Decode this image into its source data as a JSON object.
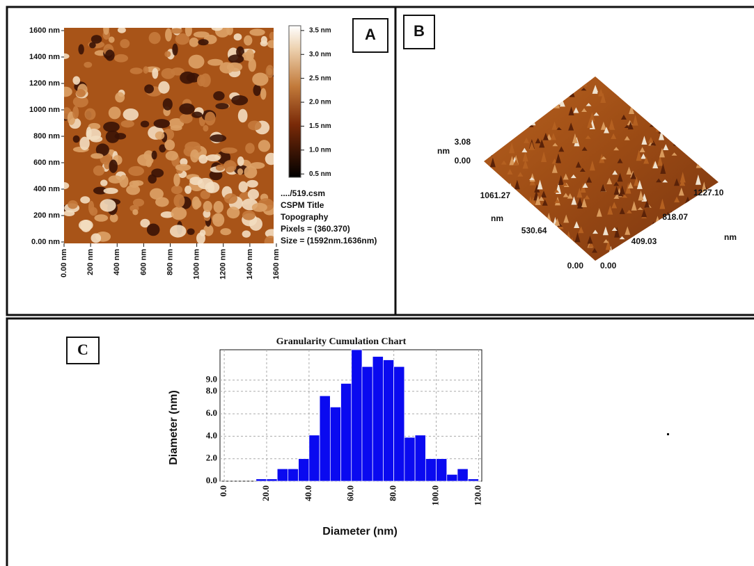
{
  "chart_data": [
    {
      "type": "image",
      "label": "A",
      "xlim": [
        0,
        1600
      ],
      "ylim": [
        0,
        1600
      ],
      "xticks": [
        {
          "value": 0,
          "label": "0.00 nm"
        },
        {
          "value": 200,
          "label": "200 nm"
        },
        {
          "value": 400,
          "label": "400 nm"
        },
        {
          "value": 600,
          "label": "600 nm"
        },
        {
          "value": 800,
          "label": "800 nm"
        },
        {
          "value": 1000,
          "label": "1000 nm"
        },
        {
          "value": 1200,
          "label": "1200 nm"
        },
        {
          "value": 1400,
          "label": "1400 nm"
        },
        {
          "value": 1600,
          "label": "1600 nm"
        }
      ],
      "yticks": [
        {
          "value": 0,
          "label": "0.00 nm"
        },
        {
          "value": 200,
          "label": "200 nm"
        },
        {
          "value": 400,
          "label": "400 nm"
        },
        {
          "value": 600,
          "label": "600 nm"
        },
        {
          "value": 800,
          "label": "800 nm"
        },
        {
          "value": 1000,
          "label": "1000 nm"
        },
        {
          "value": 1200,
          "label": "1200 nm"
        },
        {
          "value": 1400,
          "label": "1400 nm"
        },
        {
          "value": 1600,
          "label": "1600 nm"
        }
      ],
      "clim": [
        0.43,
        3.6
      ],
      "cticks": [
        {
          "value": 0.5,
          "label": "0.5 nm"
        },
        {
          "value": 1.0,
          "label": "1.0 nm"
        },
        {
          "value": 1.5,
          "label": "1.5 nm"
        },
        {
          "value": 2.0,
          "label": "2.0 nm"
        },
        {
          "value": 2.5,
          "label": "2.5 nm"
        },
        {
          "value": 3.0,
          "label": "3.0 nm"
        },
        {
          "value": 3.5,
          "label": "3.5 nm"
        }
      ],
      "info": [
        "..../519.csm",
        "CSPM Title",
        "Topography",
        "Pixels = (360.370)",
        "Size = (1592nm.1636nm)"
      ]
    },
    {
      "type": "surface3d",
      "label": "B",
      "zticks": [
        {
          "value": 0,
          "label": "0.00"
        },
        3.08
      ],
      "z_unit": "nm",
      "yticks": [
        {
          "value": 0,
          "label": "0.00"
        },
        530.64,
        1061.27
      ],
      "y_unit": "nm",
      "xticks": [
        {
          "value": 0,
          "label": "0.00"
        },
        409.03,
        818.07,
        {
          "value": 1227.1,
          "label": "1227.10"
        }
      ],
      "x_unit": "nm"
    },
    {
      "type": "histogram",
      "label": "C",
      "title": "Granularity Cumulation Chart",
      "xlabel": "Diameter (nm)",
      "ylabel": "Diameter (nm)",
      "bins": [
        15,
        20,
        25,
        30,
        35,
        40,
        45,
        50,
        55,
        60,
        65,
        70,
        75,
        80,
        85,
        90,
        95,
        100,
        105,
        110,
        115,
        120
      ],
      "values": [
        0.2,
        0.2,
        1.1,
        1.1,
        2.0,
        4.1,
        7.6,
        6.6,
        8.7,
        11.7,
        10.2,
        11.1,
        10.8,
        10.2,
        3.9,
        4.1,
        2.0,
        2.0,
        0.6,
        1.1,
        0.2
      ],
      "color": "#0a0af0",
      "grid": true,
      "xlim": [
        -2,
        121.5
      ],
      "ylim": [
        0,
        11.7
      ],
      "xticks": [
        {
          "value": 0,
          "label": "0.0"
        },
        {
          "value": 20,
          "label": "20.0"
        },
        {
          "value": 40,
          "label": "40.0"
        },
        {
          "value": 60,
          "label": "60.0"
        },
        {
          "value": 80,
          "label": "80.0"
        },
        {
          "value": 100,
          "label": "100.0"
        },
        {
          "value": 120,
          "label": "120.0"
        }
      ],
      "yticks": [
        {
          "value": 0,
          "label": "0.0"
        },
        {
          "value": 2,
          "label": "2.0"
        },
        {
          "value": 4,
          "label": "4.0"
        },
        {
          "value": 6,
          "label": "6.0"
        },
        {
          "value": 8,
          "label": "8.0"
        },
        {
          "value": 9,
          "label": "9.0"
        }
      ]
    }
  ]
}
